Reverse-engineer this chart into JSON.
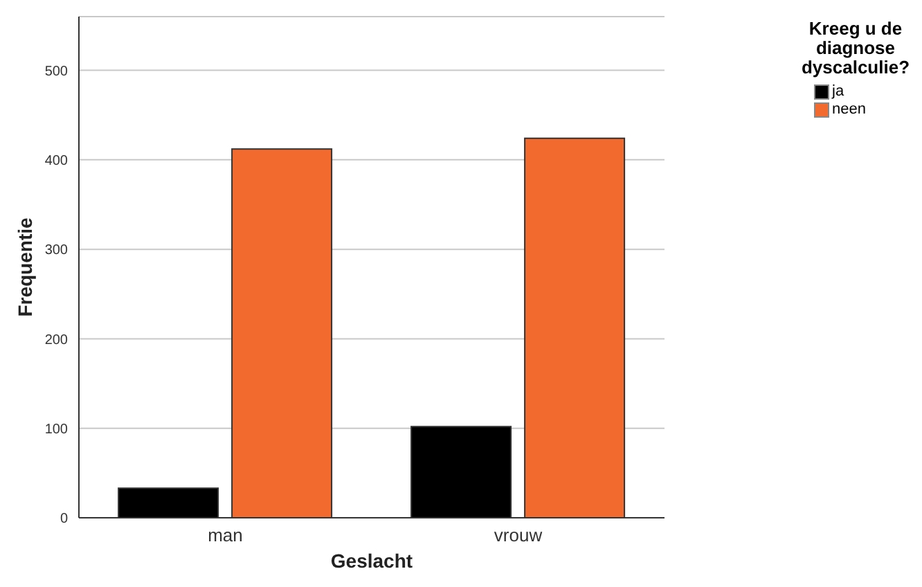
{
  "chart_data": {
    "type": "bar",
    "xlabel": "Geslacht",
    "ylabel": "Frequentie",
    "legend_title": "Kreeg u de diagnose dyscalculie?",
    "categories": [
      "man",
      "vrouw"
    ],
    "series": [
      {
        "name": "ja",
        "color": "#000000",
        "values": [
          33,
          102
        ]
      },
      {
        "name": "neen",
        "color": "#f26a2e",
        "values": [
          412,
          424
        ]
      }
    ],
    "ylim": [
      0,
      560
    ],
    "yticks": [
      0,
      100,
      200,
      300,
      400,
      500
    ],
    "grid": "y",
    "legend": "top right"
  }
}
